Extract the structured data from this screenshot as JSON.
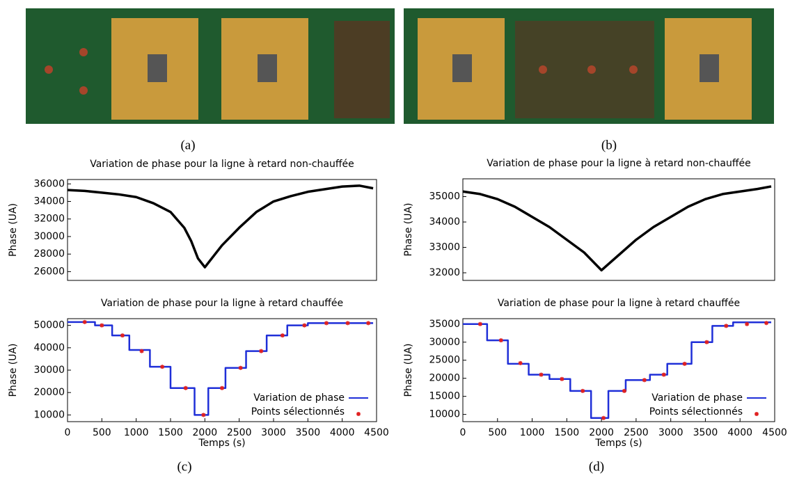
{
  "photo_labels": [
    "(a)",
    "(b)"
  ],
  "chart_data": [
    {
      "type": "line",
      "title": "Variation de phase pour la ligne à retard non-chauffée",
      "ylabel": "Phase (UA)",
      "caption": "(c)",
      "xlim": [
        0,
        4500
      ],
      "ylim": [
        25000,
        36500
      ],
      "yticks": [
        26000,
        28000,
        30000,
        32000,
        34000,
        36000
      ],
      "series": [
        {
          "color": "#000000",
          "mode": "lines",
          "x": [
            0,
            250,
            500,
            750,
            1000,
            1250,
            1500,
            1700,
            1800,
            1900,
            2000,
            2100,
            2250,
            2500,
            2750,
            3000,
            3250,
            3500,
            3750,
            4000,
            4250,
            4450
          ],
          "values": [
            35300,
            35200,
            35000,
            34800,
            34500,
            33800,
            32800,
            31000,
            29500,
            27500,
            26500,
            27500,
            29000,
            31000,
            32800,
            34000,
            34600,
            35100,
            35400,
            35700,
            35800,
            35500
          ]
        }
      ]
    },
    {
      "type": "line",
      "title": "Variation de phase pour la ligne à retard non-chauffée",
      "ylabel": "Phase (UA)",
      "caption": "(d)",
      "xlim": [
        0,
        4500
      ],
      "ylim": [
        31700,
        35700
      ],
      "yticks": [
        32000,
        33000,
        34000,
        35000
      ],
      "series": [
        {
          "color": "#000000",
          "mode": "lines",
          "x": [
            0,
            250,
            500,
            750,
            1000,
            1250,
            1500,
            1750,
            2000,
            2250,
            2500,
            2750,
            3000,
            3250,
            3500,
            3750,
            4000,
            4250,
            4450
          ],
          "values": [
            35200,
            35100,
            34900,
            34600,
            34200,
            33800,
            33300,
            32800,
            32100,
            32700,
            33300,
            33800,
            34200,
            34600,
            34900,
            35100,
            35200,
            35300,
            35400
          ]
        }
      ]
    },
    {
      "type": "line",
      "title": "Variation de phase pour la ligne à retard chauffée",
      "xlabel": "Temps (s)",
      "ylabel": "Phase (UA)",
      "legend": "lower right",
      "xlim": [
        0,
        4500
      ],
      "xticks": [
        0,
        500,
        1000,
        1500,
        2000,
        2500,
        3000,
        3500,
        4000,
        4500
      ],
      "ylim": [
        7000,
        53000
      ],
      "yticks": [
        10000,
        20000,
        30000,
        40000,
        50000
      ],
      "series": [
        {
          "name": "Variation de phase",
          "color": "#1f2fd8",
          "mode": "lines",
          "x": [
            0,
            400,
            400,
            650,
            650,
            900,
            900,
            1200,
            1200,
            1500,
            1500,
            1850,
            1850,
            2050,
            2050,
            2300,
            2300,
            2600,
            2600,
            2900,
            2900,
            3200,
            3200,
            3500,
            3500,
            4450
          ],
          "values": [
            51500,
            51500,
            50000,
            50000,
            45500,
            45500,
            39000,
            39000,
            31500,
            31500,
            22000,
            22000,
            10000,
            10000,
            22000,
            22000,
            31000,
            31000,
            38500,
            38500,
            45500,
            45500,
            50000,
            50000,
            51000,
            51000
          ]
        },
        {
          "name": "Points sélectionnés",
          "color": "#e02020",
          "mode": "markers",
          "x": [
            250,
            500,
            800,
            1080,
            1380,
            1720,
            1980,
            2250,
            2520,
            2820,
            3130,
            3450,
            3770,
            4080,
            4380
          ],
          "values": [
            51500,
            50000,
            45500,
            38500,
            31500,
            22000,
            10000,
            22000,
            31000,
            38500,
            45500,
            50000,
            51000,
            51000,
            51000
          ]
        }
      ]
    },
    {
      "type": "line",
      "title": "Variation de phase pour la ligne à retard chauffée",
      "xlabel": "Temps (s)",
      "ylabel": "Phase (UA)",
      "legend": "lower right",
      "xlim": [
        0,
        4500
      ],
      "xticks": [
        0,
        500,
        1000,
        1500,
        2000,
        2500,
        3000,
        3500,
        4000,
        4500
      ],
      "ylim": [
        8000,
        36500
      ],
      "yticks": [
        10000,
        15000,
        20000,
        25000,
        30000,
        35000
      ],
      "series": [
        {
          "name": "Variation de phase",
          "color": "#1f2fd8",
          "mode": "lines",
          "x": [
            0,
            350,
            350,
            650,
            650,
            950,
            950,
            1250,
            1250,
            1550,
            1550,
            1850,
            1850,
            2100,
            2100,
            2350,
            2350,
            2700,
            2700,
            2950,
            2950,
            3300,
            3300,
            3600,
            3600,
            3900,
            3900,
            4450
          ],
          "values": [
            35000,
            35000,
            30500,
            30500,
            24000,
            24000,
            21000,
            21000,
            19800,
            19800,
            16500,
            16500,
            9000,
            9000,
            16500,
            16500,
            19500,
            19500,
            21000,
            21000,
            24000,
            24000,
            30000,
            30000,
            34500,
            34500,
            35500,
            35500
          ]
        },
        {
          "name": "Points sélectionnés",
          "color": "#e02020",
          "mode": "markers",
          "x": [
            250,
            550,
            830,
            1130,
            1430,
            1730,
            2030,
            2330,
            2620,
            2900,
            3200,
            3520,
            3800,
            4100,
            4380
          ],
          "values": [
            35000,
            30500,
            24200,
            21000,
            19800,
            16500,
            9000,
            16500,
            19500,
            21000,
            24000,
            30000,
            34500,
            35000,
            35300
          ]
        }
      ]
    }
  ]
}
